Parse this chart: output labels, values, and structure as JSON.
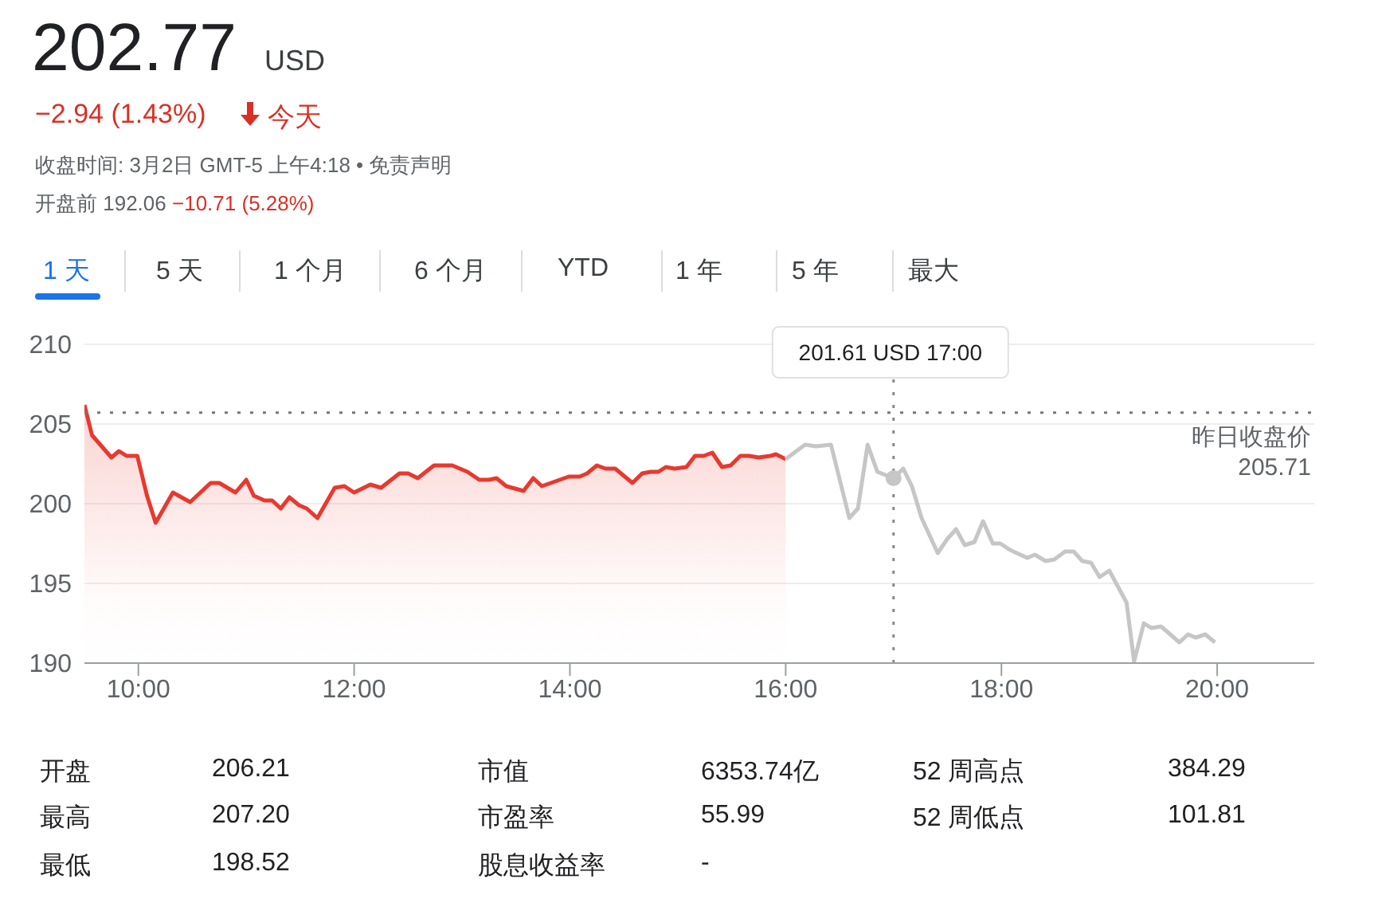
{
  "chart_data": {
    "type": "area",
    "title": "202.77",
    "annotations": [
      "USD",
      "−2.94 (1.43%)",
      "今天",
      "收盘时间: 3月2日 GMT-5 上午4:18 • 免责声明",
      "开盘前 192.06",
      "−10.71 (5.28%)",
      "1 天",
      "5 天",
      "1 个月",
      "6 个月",
      "YTD",
      "1 年",
      "5 年",
      "最大",
      "开盘",
      "206.21",
      "市值",
      "6353.74亿",
      "52 周高点",
      "384.29",
      "最高",
      "207.20",
      "市盈率",
      "55.99",
      "52 周低点",
      "101.81",
      "最低",
      "198.52",
      "股息收益率",
      "-",
      "201.61 USD  17:00"
    ],
    "series": [
      {
        "color": "#e8392f",
        "x": [
          9.5,
          9.57,
          9.75,
          9.82,
          9.89,
          9.99,
          10.08,
          10.16,
          10.32,
          10.48,
          10.67,
          10.75,
          10.9,
          11.0,
          11.07,
          11.17,
          11.24,
          11.32,
          11.4,
          11.49,
          11.56,
          11.66,
          11.82,
          11.91,
          12.0,
          12.15,
          12.25,
          12.42,
          12.5,
          12.59,
          12.74,
          12.91,
          13.05,
          13.16,
          13.25,
          13.32,
          13.41,
          13.57,
          13.66,
          13.74,
          13.99,
          14.09,
          14.16,
          14.25,
          14.33,
          14.42,
          14.58,
          14.67,
          14.75,
          14.82,
          14.89,
          14.97,
          15.08,
          15.16,
          15.24,
          15.32,
          15.41,
          15.49,
          15.58,
          15.66,
          15.75,
          15.86,
          15.91,
          16.0
        ],
        "values": [
          206.2,
          204.3,
          202.9,
          203.3,
          203.0,
          203.0,
          200.5,
          198.8,
          200.7,
          200.1,
          201.3,
          201.3,
          200.7,
          201.5,
          200.5,
          200.2,
          200.2,
          199.7,
          200.4,
          199.9,
          199.7,
          199.1,
          201.0,
          201.1,
          200.7,
          201.2,
          201.0,
          201.9,
          201.9,
          201.6,
          202.4,
          202.4,
          202.0,
          201.5,
          201.5,
          201.6,
          201.1,
          200.8,
          201.6,
          201.1,
          201.7,
          201.7,
          201.9,
          202.4,
          202.2,
          202.2,
          201.3,
          201.9,
          202.0,
          202.0,
          202.3,
          202.2,
          202.3,
          203.0,
          203.0,
          203.2,
          202.3,
          202.4,
          203.0,
          203.0,
          202.9,
          203.0,
          203.1,
          202.8
        ]
      },
      {
        "type": "line",
        "color": "#c6c6c6",
        "x": [
          16.0,
          16.18,
          16.28,
          16.42,
          16.59,
          16.67,
          16.76,
          16.85,
          17.0,
          17.09,
          17.17,
          17.26,
          17.41,
          17.5,
          17.58,
          17.66,
          17.75,
          17.83,
          17.92,
          17.99,
          18.08,
          18.24,
          18.31,
          18.41,
          18.49,
          18.59,
          18.67,
          18.75,
          18.83,
          18.91,
          19.0,
          19.16,
          19.23,
          19.32,
          19.39,
          19.48,
          19.65,
          19.73,
          19.8,
          19.89,
          19.98
        ],
        "values": [
          202.8,
          203.7,
          203.6,
          203.7,
          199.1,
          199.7,
          203.7,
          202.0,
          201.6,
          202.2,
          201.1,
          199.1,
          196.9,
          197.8,
          198.4,
          197.4,
          197.6,
          198.9,
          197.5,
          197.5,
          197.1,
          196.6,
          196.8,
          196.4,
          196.5,
          197.0,
          197.0,
          196.4,
          196.3,
          195.4,
          195.8,
          193.8,
          190.1,
          192.5,
          192.2,
          192.3,
          191.3,
          191.8,
          191.6,
          191.8,
          191.3
        ]
      },
      {
        "type": "scatter",
        "marker": "circle",
        "color": "#c6c6c6",
        "x": [
          17
        ],
        "values": [
          201.6
        ]
      }
    ],
    "xlim": [
      9.5,
      20.9
    ],
    "xticks": [
      {
        "value": 10,
        "label": "10:00"
      },
      {
        "value": 12,
        "label": "12:00"
      },
      {
        "value": 14,
        "label": "14:00"
      },
      {
        "value": 16,
        "label": "16:00"
      },
      {
        "value": 18,
        "label": "18:00"
      },
      {
        "value": 20,
        "label": "20:00"
      }
    ],
    "ylim": [
      190,
      210
    ],
    "yticks": [
      190,
      195,
      200,
      205,
      210
    ],
    "ref_lines": [
      {
        "axis": "y",
        "value": 205.71,
        "label": "昨日收盘价\n205.71",
        "line_style": "dotted",
        "color": "#777777"
      },
      {
        "axis": "x",
        "value": 17,
        "label": null,
        "line_style": "dotted",
        "color": "#888888"
      }
    ],
    "grid": "y",
    "legend": false,
    "marker": "none",
    "line_style": "solid"
  }
}
